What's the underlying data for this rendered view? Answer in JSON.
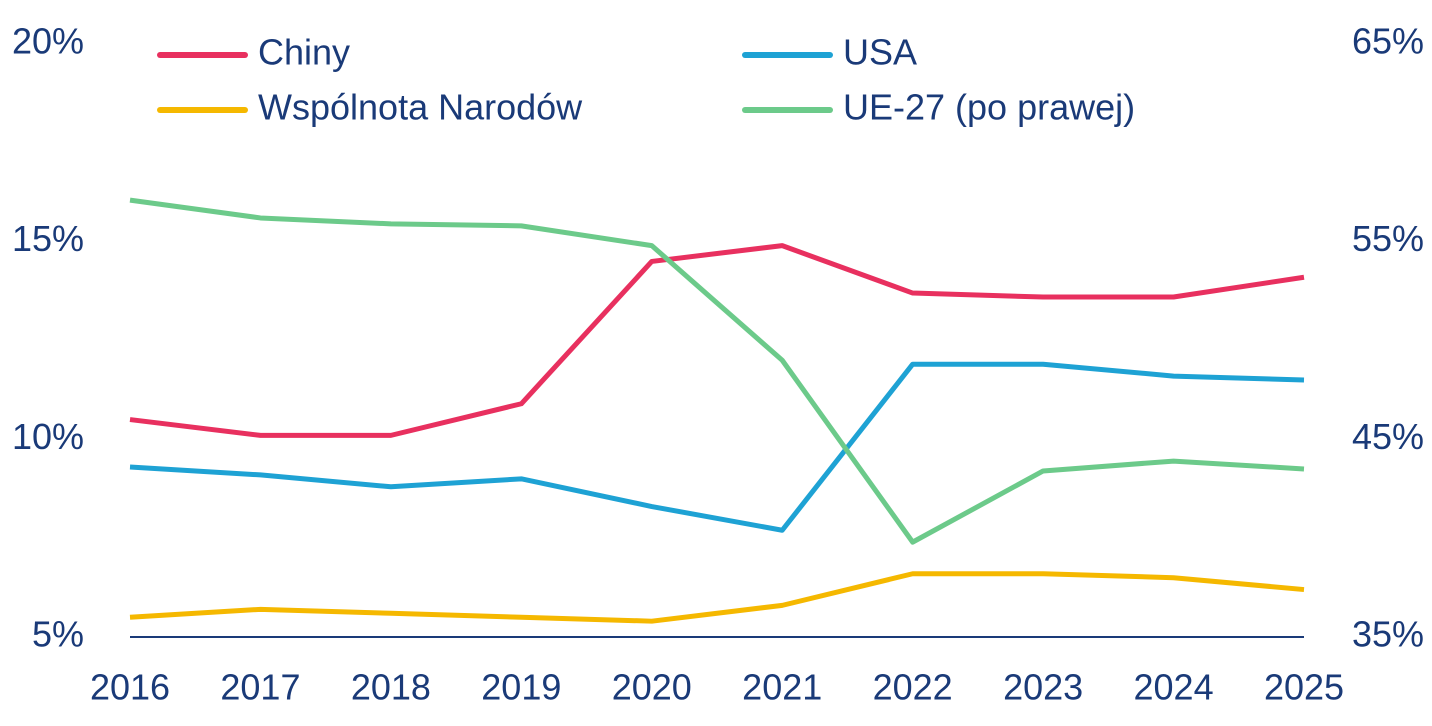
{
  "chart_data": {
    "type": "line",
    "categories": [
      "2016",
      "2017",
      "2018",
      "2019",
      "2020",
      "2021",
      "2022",
      "2023",
      "2024",
      "2025"
    ],
    "series": [
      {
        "name": "Chiny",
        "color": "#e8305f",
        "values": [
          10.5,
          10.1,
          10.1,
          10.9,
          14.5,
          14.9,
          13.7,
          13.6,
          13.6,
          14.1
        ]
      },
      {
        "name": "USA",
        "color": "#1ea2d4",
        "values": [
          9.3,
          9.1,
          8.8,
          9.0,
          8.3,
          7.7,
          11.9,
          11.9,
          11.6,
          11.5
        ]
      },
      {
        "name": "Wspólnota Narodów",
        "color": "#f5b800",
        "values": [
          5.5,
          5.7,
          5.6,
          5.5,
          5.4,
          5.8,
          6.6,
          6.6,
          6.5,
          6.2
        ]
      },
      {
        "name": "UE-27 (po prawej)",
        "color": "#6cca8a",
        "axis": "y2",
        "values": [
          57.1,
          56.2,
          55.9,
          55.8,
          54.8,
          49.0,
          39.8,
          43.4,
          43.9,
          43.5
        ]
      }
    ],
    "ylim": [
      5,
      20
    ],
    "yticks": [
      {
        "value": 5,
        "label": "5%"
      },
      {
        "value": 10,
        "label": "10%"
      },
      {
        "value": 15,
        "label": "15%"
      },
      {
        "value": 20,
        "label": "20%"
      }
    ],
    "y2lim": [
      35,
      65
    ],
    "y2ticks": [
      {
        "value": 35,
        "label": "35%"
      },
      {
        "value": 45,
        "label": "45%"
      },
      {
        "value": 55,
        "label": "55%"
      },
      {
        "value": 65,
        "label": "65%"
      }
    ],
    "grid": false
  }
}
